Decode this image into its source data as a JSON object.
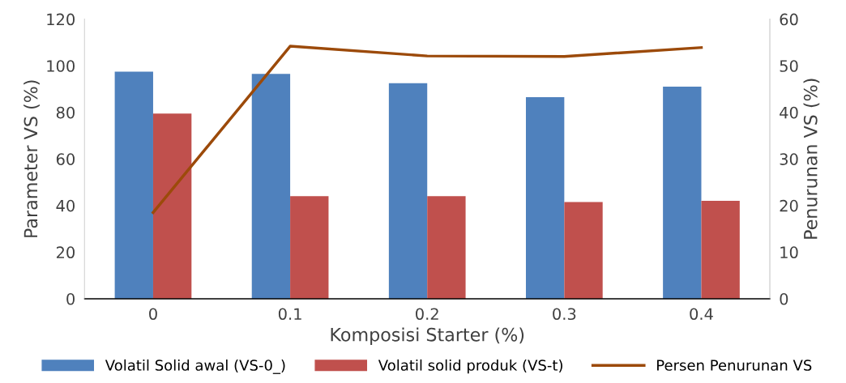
{
  "chart_data": {
    "type": "bar",
    "xlabel": "Komposisi Starter (%)",
    "ylabel": "Parameter VS (%)",
    "y2label": "Penurunan VS (%)",
    "categories": [
      "0",
      "0.1",
      "0.2",
      "0.3",
      "0.4"
    ],
    "series": [
      {
        "name": "Volatil Solid awal (VS-0_)",
        "color": "#4f81bd",
        "values": [
          97.5,
          96.5,
          92.5,
          86.5,
          91
        ]
      },
      {
        "name": "Volatil solid produk (VS-t)",
        "color": "#c0504d",
        "values": [
          79.5,
          44,
          44,
          41.5,
          42
        ]
      },
      {
        "name": "Persen Penurunan VS",
        "type": "line",
        "axis": "y2",
        "color": "#9c4a0a",
        "values": [
          18.5,
          54.2,
          52.1,
          52,
          53.9
        ]
      }
    ],
    "ylim": [
      0,
      120
    ],
    "yticks": [
      0,
      20,
      40,
      60,
      80,
      100,
      120
    ],
    "y2lim": [
      0,
      60
    ],
    "y2ticks": [
      0,
      10,
      20,
      30,
      40,
      50,
      60
    ],
    "grid": false,
    "legend": "bottom",
    "marker": "none",
    "line_style": "solid"
  }
}
